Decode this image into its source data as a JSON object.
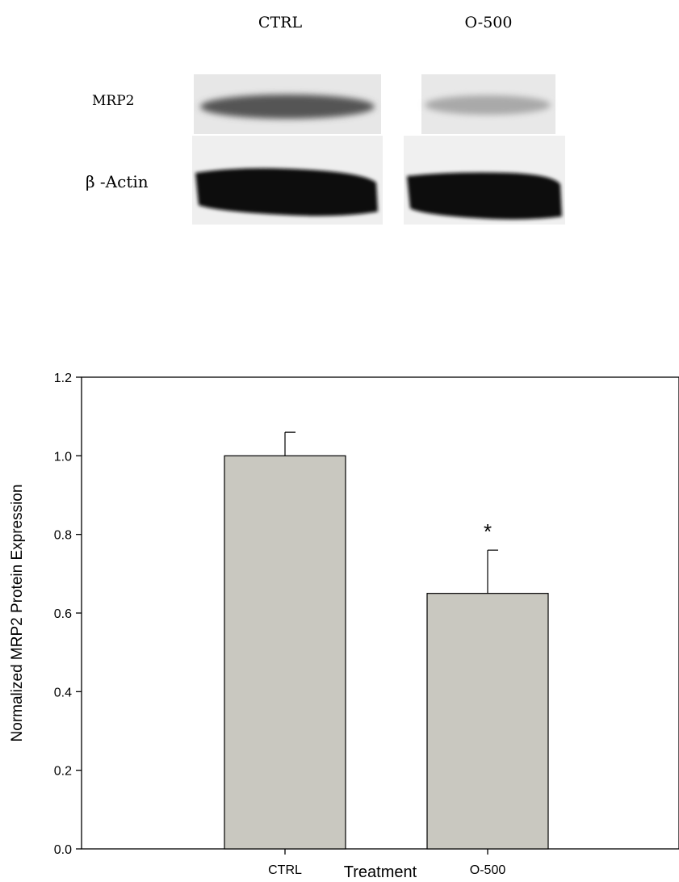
{
  "blot": {
    "lanes": [
      "CTRL",
      "O-500"
    ],
    "rows": [
      "MRP2",
      "β -Actin"
    ]
  },
  "chart_data": {
    "type": "bar",
    "categories": [
      "CTRL",
      "O-500"
    ],
    "values": [
      1.0,
      0.65
    ],
    "error": [
      0.06,
      0.11
    ],
    "significance": [
      "",
      "*"
    ],
    "xlabel": "Treatment",
    "ylabel": "Normalized MRP2 Protein Expression",
    "ylim": [
      0,
      1.2
    ],
    "yticks": [
      "0.0",
      "0.2",
      "0.4",
      "0.6",
      "0.8",
      "1.0",
      "1.2"
    ],
    "bar_color": "#c9c8c0",
    "grid": false
  }
}
